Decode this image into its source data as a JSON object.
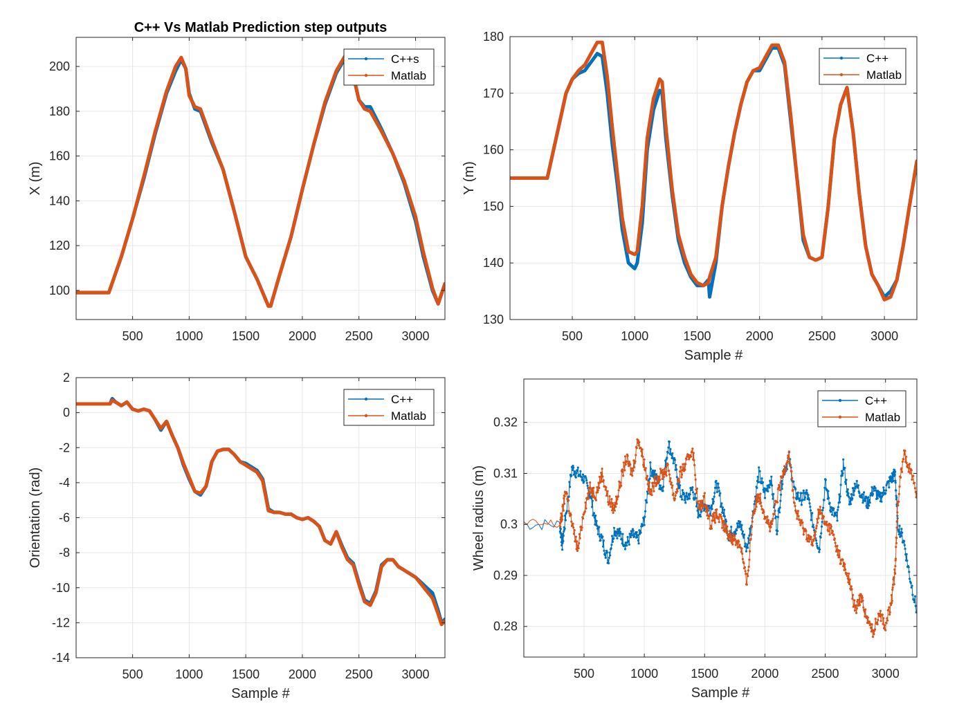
{
  "colors": {
    "cpp": "#0072BD",
    "matlab": "#D95319",
    "grid": "#e6e6e6",
    "axis": "#262626",
    "text": "#262626"
  },
  "chart_data": [
    {
      "type": "line",
      "title": "C++ Vs Matlab Prediction step outputs",
      "xlabel": "",
      "ylabel": "X (m)",
      "xlim": [
        1,
        3260
      ],
      "ylim": [
        87,
        213
      ],
      "xticks": [
        500,
        1000,
        1500,
        2000,
        2500,
        3000
      ],
      "yticks": [
        100,
        120,
        140,
        160,
        180,
        200
      ],
      "grid": true,
      "legend": "top-right",
      "series": [
        {
          "name": "C++s",
          "x": [
            1,
            290,
            400,
            500,
            600,
            700,
            800,
            880,
            930,
            970,
            1000,
            1050,
            1100,
            1200,
            1300,
            1400,
            1500,
            1600,
            1700,
            1720,
            1800,
            1900,
            2000,
            2100,
            2200,
            2300,
            2380,
            2450,
            2500,
            2550,
            2600,
            2700,
            2800,
            2900,
            3000,
            3070,
            3150,
            3200,
            3260
          ],
          "y": [
            99,
            99,
            115,
            132,
            150,
            170,
            188,
            198,
            203,
            199,
            188,
            181,
            180,
            166,
            154,
            135,
            115,
            105,
            93,
            93,
            107,
            124,
            145,
            165,
            183,
            197,
            204,
            196,
            185,
            182,
            182,
            172,
            161,
            148,
            131,
            115,
            100,
            94,
            103
          ]
        },
        {
          "name": "Matlab",
          "x": [
            1,
            290,
            400,
            500,
            600,
            700,
            800,
            880,
            930,
            970,
            1000,
            1050,
            1100,
            1200,
            1300,
            1400,
            1500,
            1600,
            1700,
            1720,
            1800,
            1900,
            2000,
            2100,
            2200,
            2300,
            2380,
            2450,
            2500,
            2550,
            2600,
            2700,
            2800,
            2900,
            3000,
            3070,
            3150,
            3200,
            3260
          ],
          "y": [
            99,
            99,
            115,
            132,
            151,
            171,
            189,
            200,
            204,
            199,
            187,
            182,
            181,
            167,
            154,
            135,
            115,
            105,
            93,
            93,
            107,
            124,
            145,
            165,
            184,
            198,
            205,
            196,
            185,
            181,
            180,
            171,
            161,
            149,
            133,
            117,
            101,
            94,
            103
          ]
        }
      ]
    },
    {
      "type": "line",
      "title": "",
      "xlabel": "Sample #",
      "ylabel": "Y (m)",
      "xlim": [
        1,
        3260
      ],
      "ylim": [
        130,
        180
      ],
      "xticks": [
        500,
        1000,
        1500,
        2000,
        2500,
        3000
      ],
      "yticks": [
        130,
        140,
        150,
        160,
        170,
        180
      ],
      "grid": true,
      "legend": "top-right",
      "series": [
        {
          "name": "C++",
          "x": [
            1,
            300,
            350,
            400,
            450,
            500,
            550,
            600,
            650,
            700,
            740,
            780,
            820,
            860,
            900,
            950,
            1000,
            1020,
            1060,
            1100,
            1150,
            1200,
            1220,
            1250,
            1300,
            1350,
            1400,
            1450,
            1500,
            1550,
            1590,
            1600,
            1650,
            1700,
            1750,
            1800,
            1850,
            1900,
            1950,
            2000,
            2050,
            2100,
            2150,
            2200,
            2250,
            2300,
            2350,
            2400,
            2450,
            2500,
            2550,
            2600,
            2650,
            2700,
            2750,
            2800,
            2850,
            2900,
            2950,
            3000,
            3050,
            3100,
            3150,
            3200,
            3260
          ],
          "y": [
            155,
            155,
            160,
            165,
            170,
            172.5,
            173.5,
            174,
            175.5,
            177,
            176.5,
            170,
            161,
            154,
            146,
            140,
            139,
            140,
            147,
            160,
            167,
            170.5,
            170,
            162,
            152,
            144,
            140,
            137.5,
            136,
            136,
            137,
            134,
            140,
            150,
            157,
            163,
            168,
            172,
            174,
            174,
            176,
            178,
            178,
            175,
            165,
            155,
            144,
            141,
            140.5,
            141,
            150,
            162,
            168,
            171,
            163,
            152,
            143,
            138,
            136,
            134,
            135,
            137,
            143,
            150,
            158
          ]
        },
        {
          "name": "Matlab",
          "x": [
            1,
            300,
            350,
            400,
            450,
            500,
            550,
            600,
            650,
            700,
            740,
            780,
            820,
            860,
            900,
            950,
            1000,
            1020,
            1060,
            1100,
            1150,
            1200,
            1220,
            1250,
            1300,
            1350,
            1400,
            1450,
            1500,
            1550,
            1590,
            1600,
            1650,
            1700,
            1750,
            1800,
            1850,
            1900,
            1950,
            2000,
            2050,
            2100,
            2150,
            2200,
            2250,
            2300,
            2350,
            2400,
            2450,
            2500,
            2550,
            2600,
            2650,
            2700,
            2750,
            2800,
            2850,
            2900,
            2950,
            3000,
            3050,
            3100,
            3150,
            3200,
            3260
          ],
          "y": [
            155,
            155,
            160,
            165,
            170,
            172.5,
            174,
            175,
            177,
            179,
            179,
            173,
            164,
            156,
            148,
            142,
            141.5,
            142,
            150,
            162,
            169,
            172.5,
            172,
            164,
            153,
            145,
            141,
            138,
            136.5,
            136,
            136.5,
            137.5,
            141,
            150,
            157,
            163,
            168,
            172,
            174,
            174.5,
            176.5,
            178.5,
            178.5,
            175.5,
            166,
            155,
            145,
            141,
            140.5,
            141,
            150,
            162,
            168,
            171,
            163,
            152,
            143,
            138,
            136,
            133.5,
            134,
            137,
            143,
            150,
            158
          ]
        }
      ]
    },
    {
      "type": "line",
      "title": "",
      "xlabel": "Sample #",
      "ylabel": "Orientation (rad)",
      "xlim": [
        1,
        3260
      ],
      "ylim": [
        -14,
        2
      ],
      "xticks": [
        500,
        1000,
        1500,
        2000,
        2500,
        3000
      ],
      "yticks": [
        -14,
        -12,
        -10,
        -8,
        -6,
        -4,
        -2,
        0,
        2
      ],
      "grid": true,
      "legend": "top-right",
      "series": [
        {
          "name": "C++",
          "x": [
            1,
            300,
            320,
            350,
            400,
            450,
            500,
            550,
            600,
            650,
            700,
            750,
            800,
            850,
            900,
            950,
            1000,
            1050,
            1100,
            1150,
            1200,
            1250,
            1300,
            1350,
            1400,
            1450,
            1500,
            1550,
            1600,
            1650,
            1700,
            1750,
            1800,
            1850,
            1900,
            1950,
            2000,
            2050,
            2100,
            2150,
            2200,
            2250,
            2300,
            2350,
            2400,
            2450,
            2500,
            2550,
            2600,
            2650,
            2700,
            2750,
            2800,
            2850,
            2900,
            2950,
            3000,
            3050,
            3100,
            3150,
            3200,
            3230,
            3260
          ],
          "y": [
            0.5,
            0.5,
            0.8,
            0.6,
            0.4,
            0.6,
            0.2,
            0.1,
            0.2,
            0.1,
            -0.4,
            -1.0,
            -0.5,
            -1.3,
            -2.0,
            -3.0,
            -3.8,
            -4.5,
            -4.7,
            -4.2,
            -2.8,
            -2.2,
            -2.1,
            -2.1,
            -2.4,
            -2.8,
            -2.9,
            -3.1,
            -3.3,
            -3.8,
            -5.5,
            -5.7,
            -5.7,
            -5.8,
            -5.8,
            -6.0,
            -6.1,
            -6.0,
            -6.2,
            -6.5,
            -7.3,
            -7.5,
            -6.8,
            -7.6,
            -8.3,
            -8.6,
            -9.7,
            -10.7,
            -10.9,
            -10.2,
            -8.7,
            -8.4,
            -8.4,
            -8.8,
            -9.0,
            -9.2,
            -9.4,
            -9.7,
            -10.0,
            -10.3,
            -11.3,
            -12.0,
            -11.8
          ]
        },
        {
          "name": "Matlab",
          "x": [
            1,
            300,
            320,
            350,
            400,
            450,
            500,
            550,
            600,
            650,
            700,
            750,
            800,
            850,
            900,
            950,
            1000,
            1050,
            1100,
            1150,
            1200,
            1250,
            1300,
            1350,
            1400,
            1450,
            1500,
            1550,
            1600,
            1650,
            1700,
            1750,
            1800,
            1850,
            1900,
            1950,
            2000,
            2050,
            2100,
            2150,
            2200,
            2250,
            2300,
            2350,
            2400,
            2450,
            2500,
            2550,
            2600,
            2650,
            2700,
            2750,
            2800,
            2850,
            2900,
            2950,
            3000,
            3050,
            3100,
            3150,
            3200,
            3230,
            3260
          ],
          "y": [
            0.5,
            0.5,
            0.7,
            0.6,
            0.4,
            0.6,
            0.2,
            0.1,
            0.2,
            0.1,
            -0.4,
            -0.9,
            -0.5,
            -1.3,
            -2.0,
            -2.9,
            -3.7,
            -4.5,
            -4.6,
            -4.2,
            -2.8,
            -2.2,
            -2.1,
            -2.1,
            -2.4,
            -2.8,
            -3.0,
            -3.2,
            -3.4,
            -3.9,
            -5.6,
            -5.7,
            -5.7,
            -5.8,
            -5.8,
            -6.0,
            -6.1,
            -6.0,
            -6.2,
            -6.5,
            -7.3,
            -7.5,
            -6.8,
            -7.7,
            -8.4,
            -8.7,
            -9.8,
            -10.8,
            -11.0,
            -10.3,
            -8.8,
            -8.4,
            -8.4,
            -8.8,
            -9.0,
            -9.2,
            -9.4,
            -9.8,
            -10.2,
            -10.6,
            -11.5,
            -12.1,
            -11.9
          ]
        }
      ]
    },
    {
      "type": "line",
      "title": "",
      "xlabel": "Sample #",
      "ylabel": "Wheel radius (m)",
      "xlim": [
        1,
        3260
      ],
      "ylim": [
        0.274,
        0.3285
      ],
      "xticks": [
        500,
        1000,
        1500,
        2000,
        2500,
        3000
      ],
      "yticks": [
        0.28,
        0.29,
        0.3,
        0.31,
        0.32
      ],
      "grid": true,
      "legend": "top-right",
      "series": [
        {
          "name": "C++",
          "x": [
            1,
            300,
            320,
            350,
            400,
            450,
            500,
            550,
            600,
            650,
            700,
            750,
            800,
            850,
            900,
            950,
            1000,
            1050,
            1100,
            1150,
            1200,
            1250,
            1300,
            1350,
            1400,
            1450,
            1500,
            1550,
            1600,
            1650,
            1700,
            1750,
            1800,
            1850,
            1900,
            1950,
            2000,
            2050,
            2100,
            2150,
            2200,
            2250,
            2300,
            2350,
            2400,
            2450,
            2500,
            2550,
            2600,
            2650,
            2700,
            2750,
            2800,
            2850,
            2900,
            2950,
            3000,
            3050,
            3080,
            3100,
            3150,
            3200,
            3260
          ],
          "y": [
            0.3,
            0.3,
            0.296,
            0.302,
            0.311,
            0.31,
            0.309,
            0.306,
            0.3,
            0.297,
            0.293,
            0.299,
            0.298,
            0.296,
            0.298,
            0.297,
            0.301,
            0.311,
            0.309,
            0.307,
            0.316,
            0.312,
            0.306,
            0.305,
            0.307,
            0.302,
            0.304,
            0.303,
            0.308,
            0.303,
            0.298,
            0.299,
            0.3,
            0.295,
            0.302,
            0.31,
            0.306,
            0.309,
            0.299,
            0.31,
            0.313,
            0.306,
            0.305,
            0.306,
            0.3,
            0.295,
            0.308,
            0.303,
            0.301,
            0.312,
            0.304,
            0.308,
            0.306,
            0.304,
            0.307,
            0.305,
            0.307,
            0.309,
            0.31,
            0.3,
            0.297,
            0.29,
            0.283
          ]
        },
        {
          "name": "Matlab",
          "x": [
            1,
            300,
            320,
            350,
            400,
            450,
            500,
            550,
            600,
            650,
            700,
            750,
            800,
            850,
            900,
            950,
            1000,
            1050,
            1100,
            1150,
            1200,
            1250,
            1300,
            1350,
            1400,
            1450,
            1500,
            1550,
            1600,
            1650,
            1700,
            1750,
            1800,
            1850,
            1900,
            1950,
            2000,
            2050,
            2100,
            2150,
            2200,
            2250,
            2300,
            2350,
            2400,
            2450,
            2500,
            2550,
            2600,
            2650,
            2700,
            2750,
            2800,
            2850,
            2900,
            2950,
            3000,
            3050,
            3080,
            3100,
            3150,
            3200,
            3260
          ],
          "y": [
            0.3,
            0.3,
            0.302,
            0.307,
            0.3,
            0.295,
            0.303,
            0.307,
            0.306,
            0.31,
            0.305,
            0.303,
            0.308,
            0.313,
            0.31,
            0.317,
            0.312,
            0.306,
            0.309,
            0.31,
            0.311,
            0.305,
            0.31,
            0.312,
            0.315,
            0.303,
            0.305,
            0.3,
            0.302,
            0.3,
            0.298,
            0.297,
            0.296,
            0.288,
            0.302,
            0.306,
            0.302,
            0.299,
            0.305,
            0.31,
            0.314,
            0.303,
            0.3,
            0.298,
            0.296,
            0.303,
            0.3,
            0.299,
            0.295,
            0.292,
            0.289,
            0.283,
            0.286,
            0.281,
            0.279,
            0.283,
            0.28,
            0.285,
            0.291,
            0.304,
            0.314,
            0.311,
            0.306
          ]
        }
      ]
    }
  ]
}
